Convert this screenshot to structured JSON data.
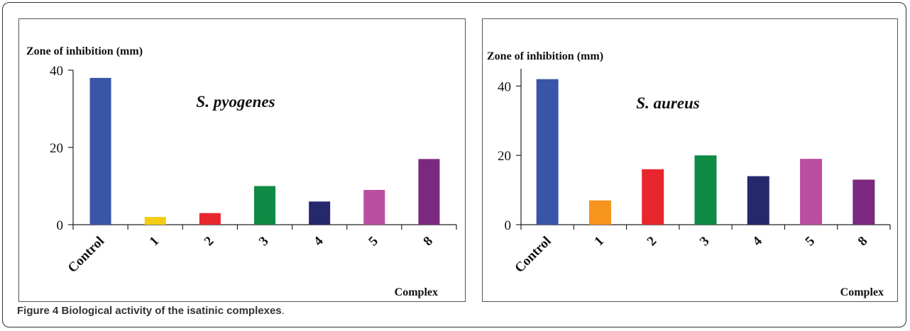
{
  "caption": {
    "label": "Figure 4",
    "title": "Biological activity of the isatinic complexes",
    "end": "."
  },
  "chart_data": [
    {
      "type": "bar",
      "ylabel": "Zone of  inhibition (mm)",
      "xlabel": "Complex",
      "annotation": "S. pyogenes",
      "categories": [
        "Control",
        "1",
        "2",
        "3",
        "4",
        "5",
        "8"
      ],
      "values": [
        38,
        2,
        3,
        10,
        6,
        9,
        17
      ],
      "colors": [
        "#3a55a8",
        "#f5cc15",
        "#e8262d",
        "#0e8a44",
        "#26286c",
        "#bb4f9f",
        "#7c2880"
      ],
      "ylim": [
        0,
        40
      ],
      "yticks": [
        0,
        20,
        40
      ],
      "grid": false,
      "legend": "none"
    },
    {
      "type": "bar",
      "ylabel": "Zone of inhibition (mm)",
      "xlabel": "Complex",
      "annotation": "S. aureus",
      "categories": [
        "Control",
        "1",
        "2",
        "3",
        "4",
        "5",
        "8"
      ],
      "values": [
        42,
        7,
        16,
        20,
        14,
        19,
        13
      ],
      "colors": [
        "#3a55a8",
        "#f7941e",
        "#e8262d",
        "#0e8a44",
        "#26286c",
        "#bb4f9f",
        "#7c2880"
      ],
      "ylim": [
        0,
        45
      ],
      "yticks": [
        0,
        20,
        40
      ],
      "grid": false,
      "legend": "none"
    }
  ]
}
